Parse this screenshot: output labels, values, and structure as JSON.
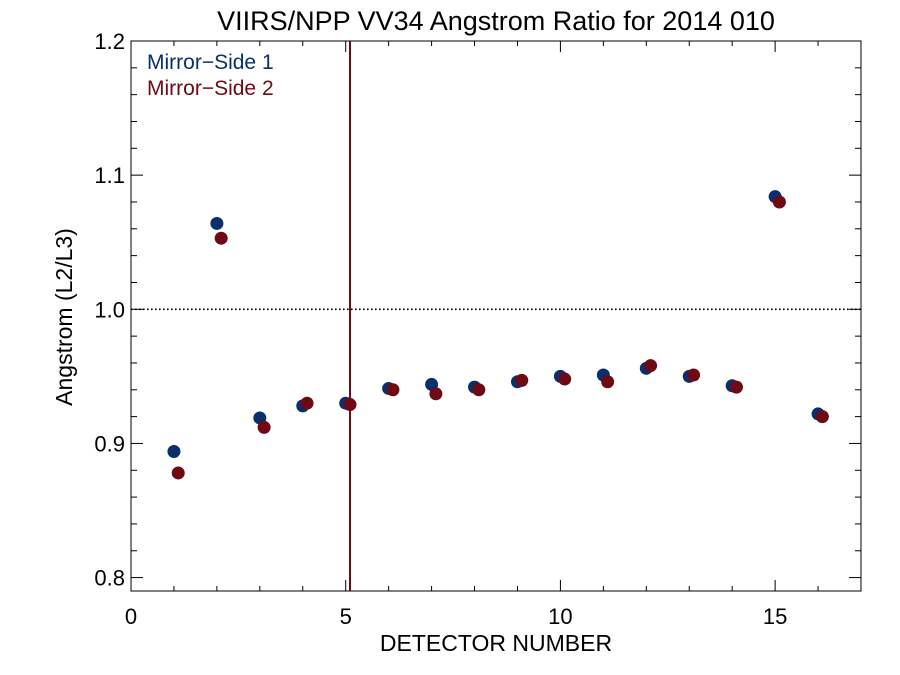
{
  "chart_data": {
    "type": "scatter",
    "title": "VIIRS/NPP VV34 Angstrom Ratio for 2014 010",
    "xlabel": "DETECTOR NUMBER",
    "ylabel": "Angstrom (L2/L3)",
    "xlim": [
      0,
      17
    ],
    "ylim": [
      0.79,
      1.2
    ],
    "xticks": [
      0,
      5,
      10,
      15
    ],
    "xtick_labels": [
      "0",
      "5",
      "10",
      "15"
    ],
    "yticks": [
      0.8,
      0.9,
      1.0,
      1.1,
      1.2
    ],
    "ytick_labels": [
      "0.8",
      "0.9",
      "1.0",
      "1.1",
      "1.2"
    ],
    "reference_hline": 1.0,
    "reference_vline": 5.1,
    "legend_position": "top-left",
    "series": [
      {
        "name": "Mirror−Side 1",
        "color": "#0a2f6e",
        "points": [
          [
            1,
            0.894
          ],
          [
            2,
            1.064
          ],
          [
            3,
            0.919
          ],
          [
            4,
            0.928
          ],
          [
            5,
            0.93
          ],
          [
            6,
            0.941
          ],
          [
            7,
            0.944
          ],
          [
            8,
            0.942
          ],
          [
            9,
            0.946
          ],
          [
            10,
            0.95
          ],
          [
            11,
            0.951
          ],
          [
            12,
            0.956
          ],
          [
            13,
            0.95
          ],
          [
            14,
            0.943
          ],
          [
            15,
            1.084
          ],
          [
            16,
            0.922
          ]
        ]
      },
      {
        "name": "Mirror−Side 2",
        "color": "#6e0a14",
        "points": [
          [
            1.1,
            0.878
          ],
          [
            2.1,
            1.053
          ],
          [
            3.1,
            0.912
          ],
          [
            4.1,
            0.93
          ],
          [
            5.1,
            0.929
          ],
          [
            6.1,
            0.94
          ],
          [
            7.1,
            0.937
          ],
          [
            8.1,
            0.94
          ],
          [
            9.1,
            0.947
          ],
          [
            10.1,
            0.948
          ],
          [
            11.1,
            0.946
          ],
          [
            12.1,
            0.958
          ],
          [
            13.1,
            0.951
          ],
          [
            14.1,
            0.942
          ],
          [
            15.1,
            1.08
          ],
          [
            16.1,
            0.92
          ]
        ]
      }
    ]
  }
}
